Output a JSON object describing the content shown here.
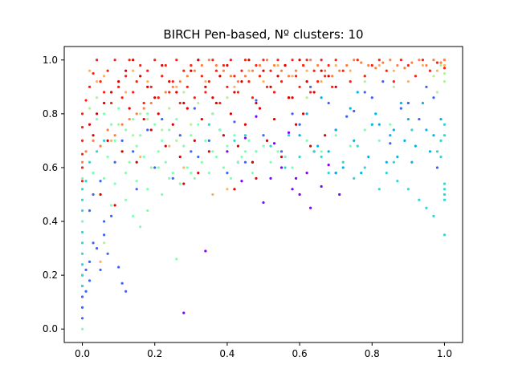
{
  "chart_data": {
    "type": "scatter",
    "title": "BIRCH Pen-based, Nº clusters: 10",
    "xlabel": "",
    "ylabel": "",
    "xlim": [
      -0.05,
      1.05
    ],
    "ylim": [
      -0.05,
      1.05
    ],
    "x_ticks": [
      0.0,
      0.2,
      0.4,
      0.6,
      0.8,
      1.0
    ],
    "y_ticks": [
      0.0,
      0.2,
      0.4,
      0.6,
      0.8,
      1.0
    ],
    "x_tick_labels": [
      "0.0",
      "0.2",
      "0.4",
      "0.6",
      "0.8",
      "1.0"
    ],
    "y_tick_labels": [
      "0.0",
      "0.2",
      "0.4",
      "0.6",
      "0.8",
      "1.0"
    ],
    "grid": false,
    "legend": "none",
    "colormap": "rainbow",
    "cluster_colors": [
      "#8000ff",
      "#4062fa",
      "#00b5eb",
      "#33d4d4",
      "#80ffb4",
      "#b4f0a0",
      "#ffb360",
      "#ff8040",
      "#ff2010",
      "#e00000"
    ],
    "series": [
      {
        "cluster": 0,
        "x": [
          0.44,
          0.5,
          0.55,
          0.58,
          0.62,
          0.66,
          0.6,
          0.52,
          0.47,
          0.7,
          0.34,
          0.28,
          0.4,
          0.56,
          0.63,
          0.68,
          0.45,
          0.53,
          0.59,
          0.38,
          0.64,
          0.71,
          0.48,
          0.57,
          0.43
        ],
        "y": [
          0.55,
          0.47,
          0.6,
          0.52,
          0.58,
          0.53,
          0.5,
          0.56,
          0.62,
          0.58,
          0.29,
          0.06,
          0.66,
          0.64,
          0.45,
          0.61,
          0.71,
          0.69,
          0.56,
          0.74,
          0.66,
          0.5,
          0.79,
          0.73,
          0.62
        ]
      },
      {
        "cluster": 1,
        "x": [
          0.0,
          0.0,
          0.0,
          0.0,
          0.0,
          0.01,
          0.01,
          0.02,
          0.02,
          0.03,
          0.04,
          0.05,
          0.06,
          0.07,
          0.08,
          0.1,
          0.11,
          0.12,
          0.15,
          0.2,
          0.25,
          0.3,
          0.32,
          0.35,
          0.4,
          0.45,
          0.5,
          0.55,
          0.6,
          0.7,
          0.75,
          0.8,
          0.85,
          0.9,
          0.95,
          0.98,
          0.02,
          0.03,
          0.05,
          0.06,
          0.09,
          0.11,
          0.14,
          0.18,
          0.22,
          0.27,
          0.31,
          0.36,
          0.42,
          0.48,
          0.53,
          0.58,
          0.63,
          0.68,
          0.73,
          0.78,
          0.83,
          0.88,
          0.93,
          0.97
        ],
        "y": [
          0.04,
          0.08,
          0.12,
          0.16,
          0.2,
          0.14,
          0.22,
          0.25,
          0.18,
          0.32,
          0.3,
          0.22,
          0.35,
          0.28,
          0.42,
          0.23,
          0.17,
          0.14,
          0.52,
          0.6,
          0.56,
          0.66,
          0.64,
          0.7,
          0.58,
          0.62,
          0.72,
          0.66,
          0.76,
          0.74,
          0.81,
          0.86,
          0.69,
          0.84,
          0.9,
          0.6,
          0.44,
          0.5,
          0.55,
          0.4,
          0.62,
          0.7,
          0.66,
          0.74,
          0.78,
          0.72,
          0.82,
          0.8,
          0.77,
          0.85,
          0.88,
          0.8,
          0.9,
          0.84,
          0.79,
          0.88,
          0.92,
          0.82,
          0.78,
          0.86
        ]
      },
      {
        "cluster": 2,
        "x": [
          0.6,
          0.65,
          0.7,
          0.75,
          0.8,
          0.85,
          0.9,
          0.95,
          0.62,
          0.68,
          0.74,
          0.79,
          0.84,
          0.89,
          0.94,
          0.99,
          0.72,
          0.77,
          0.82,
          0.87,
          0.92,
          0.97,
          0.66,
          0.81,
          0.91,
          0.76,
          0.86,
          0.96,
          0.7,
          0.88
        ],
        "y": [
          0.72,
          0.68,
          0.74,
          0.7,
          0.76,
          0.72,
          0.78,
          0.74,
          0.8,
          0.66,
          0.82,
          0.64,
          0.62,
          0.7,
          0.84,
          0.78,
          0.6,
          0.58,
          0.76,
          0.64,
          0.68,
          0.72,
          0.86,
          0.8,
          0.62,
          0.88,
          0.74,
          0.66,
          0.58,
          0.84
        ]
      },
      {
        "cluster": 3,
        "x": [
          1.0,
          1.0,
          1.0,
          1.0,
          1.0,
          1.0,
          1.0,
          0.99,
          0.99,
          0.98,
          0.97,
          0.95,
          0.93,
          0.9,
          0.87,
          0.84,
          0.82,
          0.78,
          0.75,
          0.72,
          0.68,
          0.64,
          0.6,
          0.56,
          0.52,
          0.48,
          0.45,
          0.42,
          0.38,
          0.35,
          0.03,
          0.02,
          0.01,
          0.0,
          0.0,
          0.0,
          0.0,
          0.0,
          0.0,
          0.0,
          0.0,
          0.0,
          0.0,
          0.04,
          0.06,
          0.86,
          0.91,
          0.76,
          0.66,
          0.57
        ],
        "y": [
          0.54,
          0.52,
          0.5,
          0.48,
          0.35,
          0.72,
          0.76,
          0.7,
          0.64,
          0.66,
          0.42,
          0.45,
          0.48,
          0.52,
          0.55,
          0.58,
          0.52,
          0.6,
          0.56,
          0.62,
          0.58,
          0.66,
          0.64,
          0.6,
          0.68,
          0.66,
          0.72,
          0.7,
          0.74,
          0.76,
          0.58,
          0.62,
          0.55,
          0.32,
          0.36,
          0.4,
          0.44,
          0.48,
          0.52,
          0.28,
          0.24,
          0.2,
          0.16,
          0.66,
          0.7,
          0.62,
          0.74,
          0.68,
          0.64,
          0.72
        ]
      },
      {
        "cluster": 4,
        "x": [
          0.04,
          0.06,
          0.08,
          0.1,
          0.12,
          0.14,
          0.16,
          0.18,
          0.2,
          0.22,
          0.24,
          0.26,
          0.28,
          0.3,
          0.32,
          0.34,
          0.36,
          0.38,
          0.4,
          0.42,
          0.44,
          0.46,
          0.48,
          0.5,
          0.52,
          0.54,
          0.56,
          0.58,
          0.05,
          0.07,
          0.09,
          0.11,
          0.13,
          0.15,
          0.17,
          0.19,
          0.21,
          0.23,
          0.25,
          0.27,
          0.29,
          0.31,
          0.33,
          0.35,
          0.37,
          0.39,
          0.41,
          0.43,
          0.45,
          0.47,
          0.03,
          0.06,
          0.09,
          0.12,
          0.15,
          0.18,
          0.21,
          0.24,
          0.27,
          0.3,
          0.16,
          0.14,
          0.18,
          0.22,
          0.08,
          0.12,
          0.26,
          0.62,
          0.66,
          0.7,
          0.74,
          0.78,
          0.82,
          0.85,
          0.0,
          0.0,
          0.0,
          0.0
        ],
        "y": [
          0.78,
          0.8,
          0.76,
          0.82,
          0.74,
          0.78,
          0.72,
          0.8,
          0.76,
          0.7,
          0.74,
          0.78,
          0.68,
          0.72,
          0.76,
          0.7,
          0.66,
          0.74,
          0.68,
          0.72,
          0.64,
          0.7,
          0.66,
          0.68,
          0.62,
          0.66,
          0.64,
          0.6,
          0.68,
          0.64,
          0.7,
          0.66,
          0.62,
          0.68,
          0.64,
          0.6,
          0.66,
          0.62,
          0.58,
          0.64,
          0.6,
          0.56,
          0.62,
          0.58,
          0.64,
          0.6,
          0.56,
          0.62,
          0.66,
          0.58,
          0.58,
          0.56,
          0.54,
          0.58,
          0.55,
          0.52,
          0.6,
          0.56,
          0.54,
          0.58,
          0.38,
          0.42,
          0.44,
          0.5,
          0.46,
          0.48,
          0.26,
          0.7,
          0.66,
          0.72,
          0.68,
          0.74,
          0.7,
          0.76,
          0.0,
          0.4,
          0.56,
          0.6
        ]
      },
      {
        "cluster": 5,
        "x": [
          0.02,
          0.04,
          0.08,
          0.12,
          0.16,
          0.2,
          0.24,
          0.28,
          0.32,
          0.36,
          0.4,
          0.1,
          0.14,
          0.18,
          0.22,
          0.26,
          0.3,
          0.06,
          0.99,
          1.0,
          1.0,
          0.98,
          0.97,
          0.86,
          0.78,
          0.62
        ],
        "y": [
          0.82,
          0.86,
          0.84,
          0.88,
          0.8,
          0.86,
          0.82,
          0.88,
          0.84,
          0.8,
          0.86,
          0.76,
          0.72,
          0.78,
          0.74,
          0.7,
          0.76,
          0.32,
          0.98,
          0.95,
          0.92,
          0.88,
          0.94,
          0.9,
          0.92,
          0.86
        ]
      },
      {
        "cluster": 6,
        "x": [
          0.02,
          0.04,
          0.06,
          0.1,
          0.14,
          0.18,
          0.22,
          0.26,
          0.3,
          0.34,
          0.38,
          0.42,
          0.46,
          0.5,
          0.54,
          0.58,
          0.62,
          0.66,
          0.7,
          0.74,
          0.78,
          0.82,
          0.86,
          0.9,
          0.94,
          0.98,
          1.0,
          1.0,
          0.05,
          0.36,
          0.4,
          0.12,
          0.08,
          0.16,
          0.24,
          0.28
        ],
        "y": [
          0.96,
          0.92,
          0.94,
          0.9,
          0.96,
          0.92,
          0.94,
          0.9,
          0.96,
          0.92,
          0.94,
          0.9,
          0.96,
          0.92,
          0.98,
          0.94,
          0.96,
          0.92,
          0.98,
          0.96,
          0.94,
          0.98,
          0.96,
          0.92,
          0.98,
          0.96,
          1.0,
          0.98,
          0.25,
          0.5,
          0.52,
          0.88,
          0.7,
          0.64,
          0.68,
          0.6
        ]
      },
      {
        "cluster": 7,
        "x": [
          0.0,
          0.01,
          0.03,
          0.05,
          0.07,
          0.09,
          0.11,
          0.13,
          0.15,
          0.17,
          0.19,
          0.21,
          0.23,
          0.25,
          0.27,
          0.29,
          0.31,
          0.33,
          0.35,
          0.37,
          0.39,
          0.41,
          0.43,
          0.45,
          0.47,
          0.49,
          0.51,
          0.53,
          0.55,
          0.57,
          0.59,
          0.61,
          0.63,
          0.65,
          0.67,
          0.69,
          0.71,
          0.73,
          0.75,
          0.77,
          0.79,
          0.81,
          0.83,
          0.85,
          0.87,
          0.89,
          0.91,
          0.93,
          0.95,
          0.97,
          0.99,
          1.0
        ],
        "y": [
          0.62,
          0.66,
          0.7,
          0.68,
          0.74,
          0.72,
          0.76,
          0.78,
          0.8,
          0.82,
          0.84,
          0.86,
          0.88,
          0.9,
          0.92,
          0.94,
          0.96,
          0.98,
          1.0,
          0.98,
          0.96,
          0.94,
          0.92,
          0.94,
          0.96,
          0.98,
          1.0,
          0.98,
          0.96,
          0.94,
          0.96,
          0.98,
          1.0,
          0.98,
          0.96,
          0.94,
          0.96,
          0.98,
          1.0,
          0.99,
          0.98,
          0.97,
          0.99,
          1.0,
          0.98,
          0.97,
          0.99,
          1.0,
          0.98,
          1.0,
          0.99,
          1.0
        ]
      },
      {
        "cluster": 8,
        "x": [
          0.0,
          0.0,
          0.0,
          0.0,
          0.0,
          0.0,
          0.01,
          0.02,
          0.03,
          0.04,
          0.05,
          0.06,
          0.07,
          0.08,
          0.09,
          0.1,
          0.11,
          0.12,
          0.13,
          0.14,
          0.15,
          0.16,
          0.17,
          0.18,
          0.19,
          0.2,
          0.21,
          0.22,
          0.23,
          0.24,
          0.25,
          0.26,
          0.27,
          0.28,
          0.29,
          0.3,
          0.31,
          0.32,
          0.33,
          0.34,
          0.35,
          0.36,
          0.37,
          0.38,
          0.39,
          0.4,
          0.41,
          0.42,
          0.43,
          0.44,
          0.45,
          0.46,
          0.47,
          0.48,
          0.49,
          0.5,
          0.51,
          0.52,
          0.53,
          0.54,
          0.55,
          0.56,
          0.57,
          0.58,
          0.59,
          0.6,
          0.61,
          0.62,
          0.63,
          0.64,
          0.65,
          0.66,
          0.67,
          0.68,
          0.69,
          0.7,
          0.72,
          0.74,
          0.76,
          0.78,
          0.8,
          0.82,
          0.84,
          0.86,
          0.88,
          0.9,
          0.92,
          0.94,
          0.96,
          0.98,
          1.0
        ],
        "y": [
          0.55,
          0.6,
          0.65,
          0.7,
          0.75,
          0.8,
          0.85,
          0.9,
          0.95,
          1.0,
          0.92,
          0.88,
          0.96,
          0.84,
          1.0,
          0.9,
          0.86,
          0.94,
          1.0,
          0.88,
          0.92,
          0.98,
          0.84,
          0.96,
          0.9,
          1.0,
          0.86,
          0.94,
          0.98,
          0.88,
          0.92,
          1.0,
          0.84,
          0.96,
          0.9,
          0.98,
          0.86,
          1.0,
          0.94,
          0.88,
          0.92,
          1.0,
          0.96,
          0.84,
          0.98,
          0.9,
          1.0,
          0.94,
          0.88,
          0.96,
          1.0,
          0.92,
          0.86,
          0.98,
          0.94,
          1.0,
          0.9,
          0.96,
          0.88,
          1.0,
          0.92,
          0.98,
          0.86,
          1.0,
          0.94,
          0.9,
          0.98,
          1.0,
          0.88,
          0.96,
          0.92,
          1.0,
          0.94,
          0.98,
          0.9,
          1.0,
          0.96,
          0.92,
          1.0,
          0.94,
          0.98,
          1.0,
          0.96,
          0.92,
          1.0,
          0.98,
          0.94,
          1.0,
          0.96,
          0.99,
          0.97
        ]
      },
      {
        "cluster": 9,
        "x": [
          0.02,
          0.04,
          0.06,
          0.08,
          0.1,
          0.12,
          0.14,
          0.16,
          0.18,
          0.2,
          0.22,
          0.24,
          0.26,
          0.28,
          0.3,
          0.32,
          0.34,
          0.36,
          0.38,
          0.4,
          0.42,
          0.44,
          0.46,
          0.48,
          0.5,
          0.52,
          0.54,
          0.56,
          0.58,
          0.6,
          0.62,
          0.64,
          0.66,
          0.68,
          0.7,
          0.03,
          0.07,
          0.11,
          0.15,
          0.19,
          0.23,
          0.27,
          0.31,
          0.35,
          0.39,
          0.43,
          0.47,
          0.51,
          0.55,
          0.59,
          0.63,
          0.67,
          0.13,
          0.17,
          0.21,
          0.25,
          0.29,
          0.33,
          0.37,
          0.41,
          0.45,
          0.49,
          0.53,
          0.57,
          0.61,
          0.28,
          0.32,
          0.42,
          0.48,
          0.05,
          0.09
        ],
        "y": [
          0.76,
          0.8,
          0.84,
          0.88,
          0.92,
          0.96,
          1.0,
          0.94,
          0.9,
          0.86,
          0.98,
          0.92,
          0.88,
          0.84,
          0.96,
          1.0,
          0.9,
          0.86,
          0.94,
          0.98,
          0.88,
          0.92,
          1.0,
          0.84,
          0.96,
          0.9,
          0.94,
          0.98,
          0.86,
          1.0,
          0.92,
          0.88,
          0.96,
          0.94,
          0.9,
          0.72,
          0.7,
          0.66,
          0.62,
          0.74,
          0.68,
          0.64,
          0.7,
          0.66,
          0.72,
          0.68,
          0.62,
          0.7,
          0.64,
          0.76,
          0.68,
          0.72,
          0.82,
          0.78,
          0.8,
          0.76,
          0.82,
          0.78,
          0.84,
          0.8,
          0.76,
          0.82,
          0.78,
          0.86,
          0.8,
          0.54,
          0.58,
          0.52,
          0.56,
          0.5,
          0.46
        ]
      }
    ]
  }
}
